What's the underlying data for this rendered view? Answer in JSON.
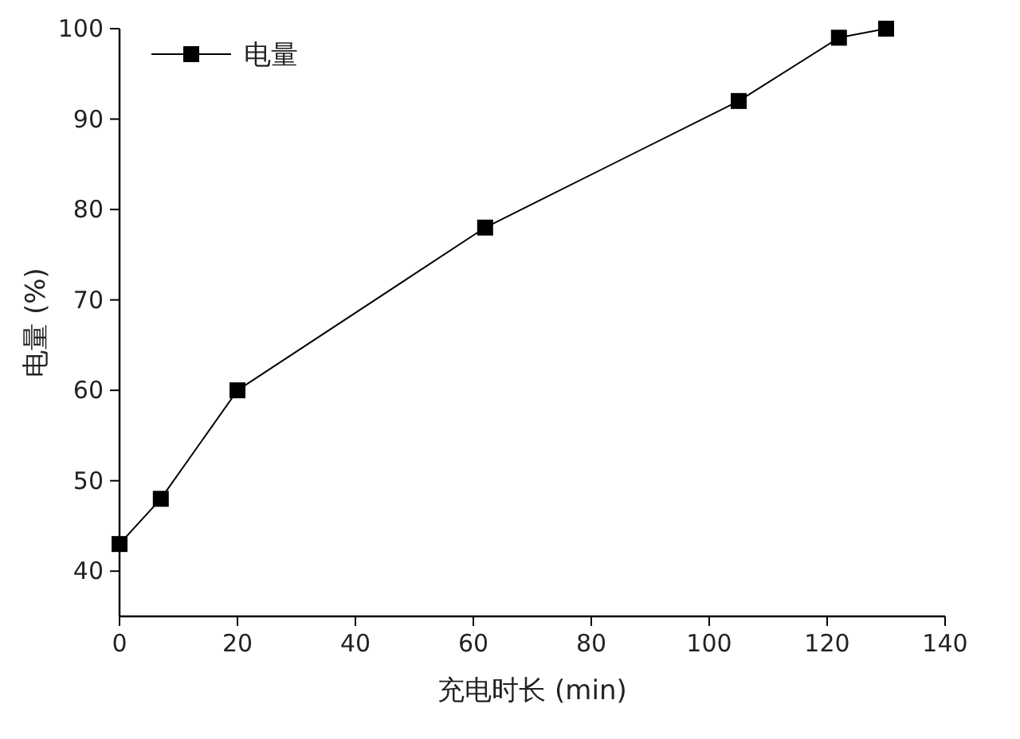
{
  "chart_data": {
    "type": "line",
    "xlabel": "充电时长 (min)",
    "ylabel": "电量 (%)",
    "x": [
      0,
      7,
      20,
      62,
      105,
      122,
      130
    ],
    "series": [
      {
        "name": "电量",
        "color": "#000000",
        "values": [
          43,
          48,
          60,
          78,
          92,
          99,
          100
        ]
      }
    ],
    "xlim": [
      0,
      140
    ],
    "xticks": [
      0,
      20,
      40,
      60,
      80,
      100,
      120,
      140
    ],
    "ylim": [
      35,
      100
    ],
    "yticks": [
      40,
      50,
      60,
      70,
      80,
      90,
      100
    ],
    "marker": "square",
    "line_style": "solid",
    "legend": "top left",
    "grid": false
  }
}
